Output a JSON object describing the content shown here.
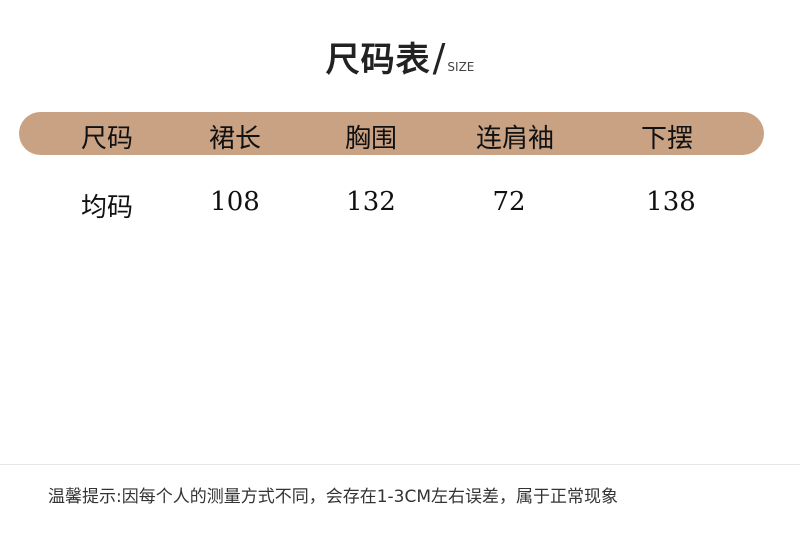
{
  "title": {
    "main": "尺码表",
    "slash": "/",
    "sub": "SIZE"
  },
  "colors": {
    "header_bg": "#c9a183"
  },
  "table": {
    "headers": [
      "尺码",
      "裙长",
      "胸围",
      "连肩袖",
      "下摆"
    ],
    "rows": [
      [
        "均码",
        "108",
        "132",
        "72",
        "138"
      ]
    ]
  },
  "note": "温馨提示:因每个人的测量方式不同，会存在1-3CM左右误差，属于正常现象"
}
